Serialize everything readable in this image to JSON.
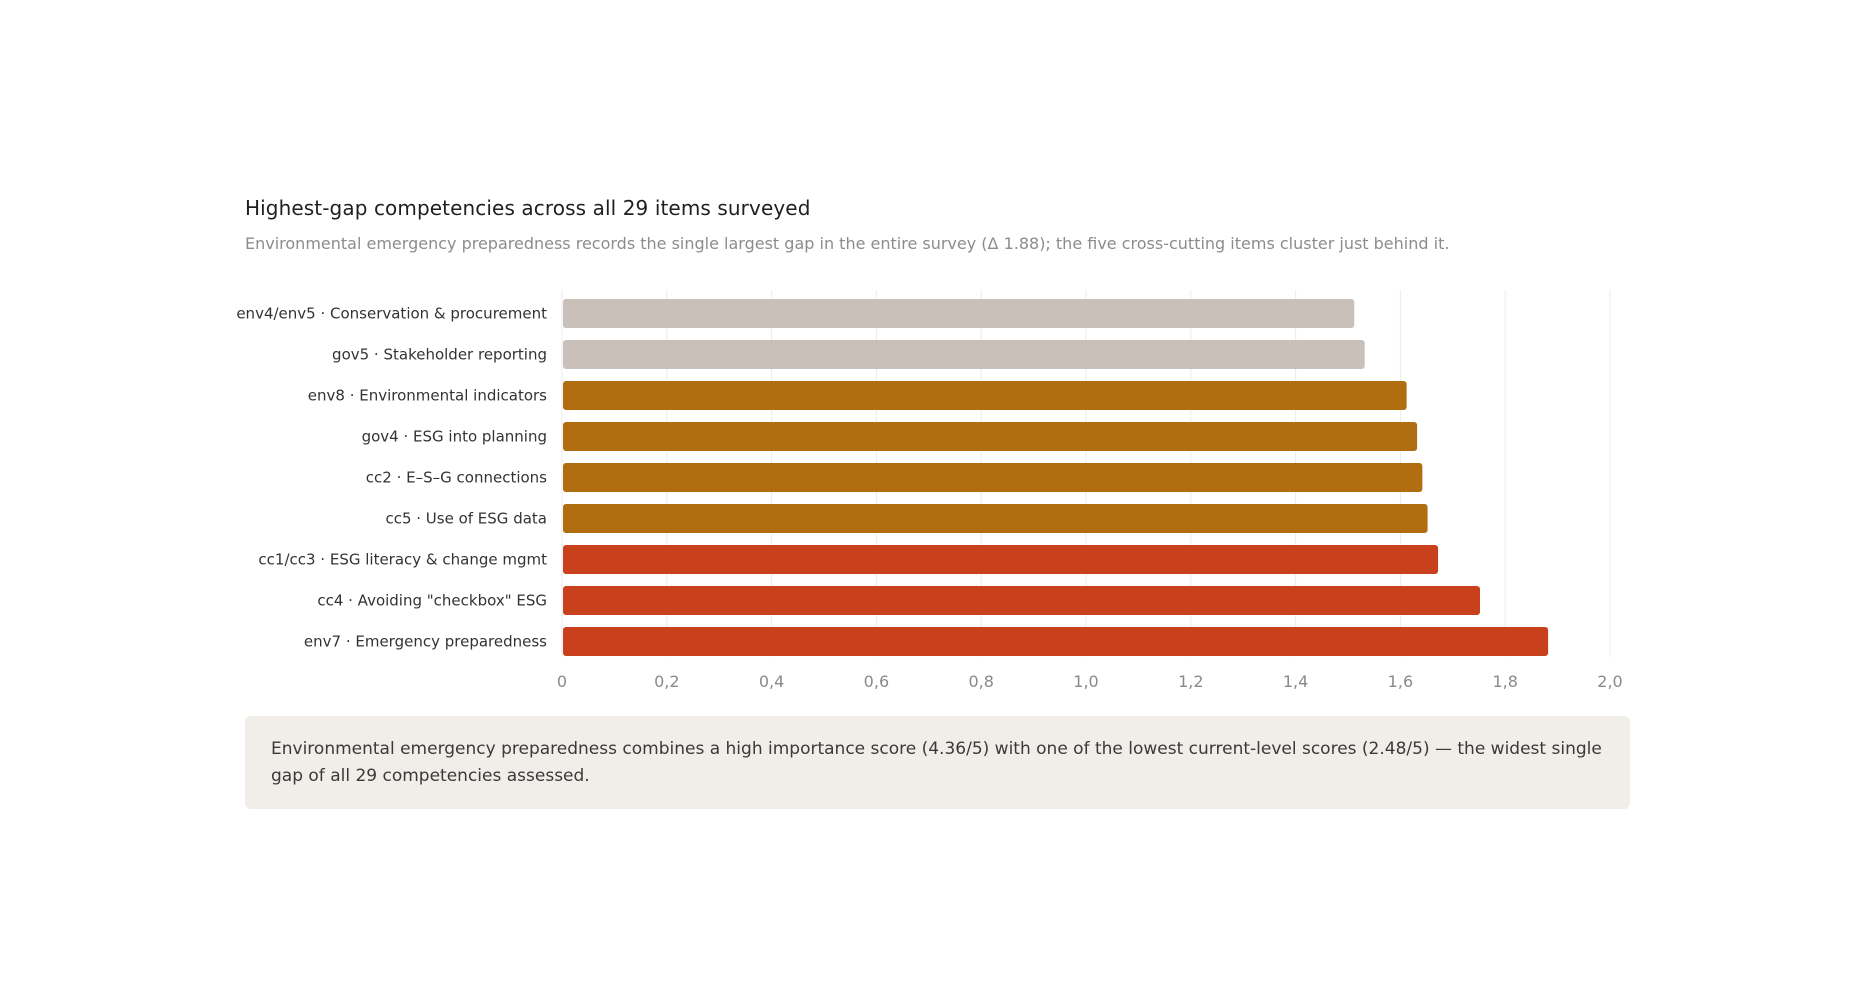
{
  "chart_data": {
    "type": "bar",
    "orientation": "horizontal",
    "title": "Highest-gap competencies across all 29 items surveyed",
    "subtitle": "Environmental emergency preparedness records the single largest gap in the entire survey (Δ 1.88); the five cross-cutting items cluster just behind it.",
    "categories": [
      "env4/env5 · Conservation & procurement",
      "gov5 · Stakeholder reporting",
      "env8 · Environmental indicators",
      "gov4 · ESG into planning",
      "cc2 · E–S–G connections",
      "cc5 · Use of ESG data",
      "cc1/cc3 · ESG literacy & change mgmt",
      "cc4 · Avoiding \"checkbox\" ESG",
      "env7 · Emergency preparedness"
    ],
    "values": [
      1.51,
      1.53,
      1.61,
      1.63,
      1.64,
      1.65,
      1.67,
      1.75,
      1.88
    ],
    "bar_colors": [
      "#c8c0b9",
      "#c8c0b9",
      "#b06e11",
      "#b06e11",
      "#b06e11",
      "#b06e11",
      "#c9401c",
      "#c9401c",
      "#c9401c"
    ],
    "xlim": [
      0,
      2.0
    ],
    "xticks": [
      "0",
      "0,2",
      "0,4",
      "0,6",
      "0,8",
      "1,0",
      "1,2",
      "1,4",
      "1,6",
      "1,8",
      "2,0"
    ],
    "grid": "vertical",
    "legend": "none"
  },
  "note": "Environmental emergency preparedness combines a high importance score (4.36/5) with one of the lowest current-level scores (2.48/5) — the widest single gap of all 29 competencies assessed."
}
